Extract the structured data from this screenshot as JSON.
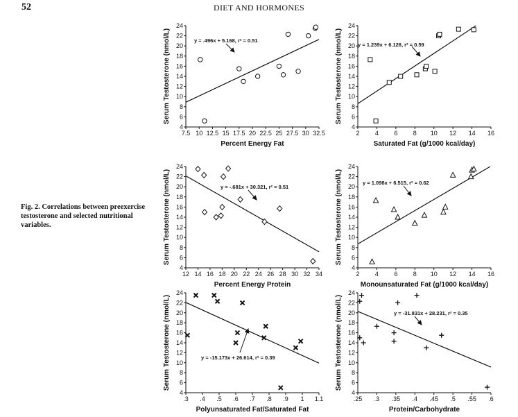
{
  "header": {
    "page_number": "52",
    "running_title": "DIET AND HORMONES"
  },
  "caption": {
    "label": "Fig. 2.",
    "text": "Correlations between preexercise testosterone and selected nutritional variables."
  },
  "chart_data": [
    {
      "type": "scatter",
      "marker": "circle",
      "xlabel": "Percent Energy Fat",
      "ylabel": "Serum Testosterone (nmol/L)",
      "xlim": [
        7.5,
        32.5
      ],
      "ylim": [
        4,
        24
      ],
      "xticks": [
        7.5,
        10,
        12.5,
        15,
        17.5,
        20,
        22.5,
        25,
        27.5,
        30,
        32.5
      ],
      "xtick_labels": [
        "7.5",
        "10",
        "12.5",
        "15",
        "17.5",
        "20",
        "22.5",
        "25",
        "27.5",
        "30",
        "32.5"
      ],
      "yticks": [
        4,
        6,
        8,
        10,
        12,
        14,
        16,
        18,
        20,
        22,
        24
      ],
      "ytick_labels": [
        "4",
        "6",
        "8",
        "10",
        "12",
        "14",
        "16",
        "18",
        "20",
        "22",
        "24"
      ],
      "points": [
        [
          10.2,
          17.3
        ],
        [
          11.0,
          5.2
        ],
        [
          17.5,
          15.5
        ],
        [
          18.3,
          13.0
        ],
        [
          21.0,
          14.0
        ],
        [
          25.0,
          16.0
        ],
        [
          25.8,
          14.3
        ],
        [
          26.7,
          22.3
        ],
        [
          28.6,
          15.0
        ],
        [
          30.5,
          22.0
        ],
        [
          31.8,
          23.5
        ],
        [
          31.9,
          23.7
        ]
      ],
      "fit": {
        "slope": 0.496,
        "intercept": 5.168
      },
      "equation": "y = .496x + 5.168, r² = 0.51"
    },
    {
      "type": "scatter",
      "marker": "square",
      "xlabel": "Saturated Fat (g/1000 kcal/day)",
      "ylabel": "Serum Testosterone (nmol/L)",
      "xlim": [
        2,
        16
      ],
      "ylim": [
        4,
        24
      ],
      "xticks": [
        2,
        4,
        6,
        8,
        10,
        12,
        14,
        16
      ],
      "xtick_labels": [
        "2",
        "4",
        "6",
        "8",
        "10",
        "12",
        "14",
        "16"
      ],
      "yticks": [
        4,
        6,
        8,
        10,
        12,
        14,
        16,
        18,
        20,
        22,
        24
      ],
      "ytick_labels": [
        "4",
        "6",
        "8",
        "10",
        "12",
        "14",
        "16",
        "18",
        "20",
        "22",
        "24"
      ],
      "points": [
        [
          3.3,
          17.3
        ],
        [
          3.9,
          5.2
        ],
        [
          5.3,
          12.8
        ],
        [
          6.5,
          14.0
        ],
        [
          8.2,
          14.3
        ],
        [
          9.1,
          15.5
        ],
        [
          9.2,
          16.0
        ],
        [
          10.1,
          15.0
        ],
        [
          10.5,
          22.0
        ],
        [
          10.6,
          22.3
        ],
        [
          12.6,
          23.3
        ],
        [
          14.2,
          23.2
        ]
      ],
      "fit": {
        "slope": 1.239,
        "intercept": 6.126
      },
      "equation": "y = 1.239x + 6.126, r² = 0.59"
    },
    {
      "type": "scatter",
      "marker": "diamond",
      "xlabel": "Percent Energy Protein",
      "ylabel": "Serum Testosterone (nmol/L)",
      "xlim": [
        12,
        34
      ],
      "ylim": [
        4,
        24
      ],
      "xticks": [
        12,
        14,
        16,
        18,
        20,
        22,
        24,
        26,
        28,
        30,
        32,
        34
      ],
      "xtick_labels": [
        "12",
        "14",
        "16",
        "18",
        "20",
        "22",
        "24",
        "26",
        "28",
        "30",
        "32",
        "34"
      ],
      "yticks": [
        4,
        6,
        8,
        10,
        12,
        14,
        16,
        18,
        20,
        22,
        24
      ],
      "ytick_labels": [
        "4",
        "6",
        "8",
        "10",
        "12",
        "14",
        "16",
        "18",
        "20",
        "22",
        "24"
      ],
      "points": [
        [
          14.0,
          23.5
        ],
        [
          15.0,
          22.3
        ],
        [
          15.1,
          15.0
        ],
        [
          17.0,
          14.0
        ],
        [
          17.8,
          14.3
        ],
        [
          18.0,
          16.0
        ],
        [
          18.2,
          22.0
        ],
        [
          19.0,
          23.6
        ],
        [
          21.0,
          17.5
        ],
        [
          25.0,
          13.1
        ],
        [
          27.5,
          15.7
        ],
        [
          33.0,
          5.3
        ]
      ],
      "fit": {
        "slope": -0.681,
        "intercept": 30.321
      },
      "equation": "y = -.681x + 30.321, r² = 0.51"
    },
    {
      "type": "scatter",
      "marker": "triangle",
      "xlabel": "Monounsaturated Fat (g/1000 kcal/day)",
      "ylabel": "Serum Testosterone (nmol/L)",
      "xlim": [
        2,
        16
      ],
      "ylim": [
        4,
        24
      ],
      "xticks": [
        2,
        4,
        6,
        8,
        10,
        12,
        14,
        16
      ],
      "xtick_labels": [
        "2",
        "4",
        "6",
        "8",
        "10",
        "12",
        "14",
        "16"
      ],
      "yticks": [
        4,
        6,
        8,
        10,
        12,
        14,
        16,
        18,
        20,
        22,
        24
      ],
      "ytick_labels": [
        "4",
        "6",
        "8",
        "10",
        "12",
        "14",
        "16",
        "18",
        "20",
        "22",
        "24"
      ],
      "points": [
        [
          3.5,
          5.2
        ],
        [
          3.9,
          17.3
        ],
        [
          5.8,
          15.5
        ],
        [
          6.2,
          14.0
        ],
        [
          8.0,
          12.8
        ],
        [
          9.0,
          14.4
        ],
        [
          11.0,
          15.0
        ],
        [
          11.2,
          16.0
        ],
        [
          12.0,
          22.3
        ],
        [
          13.9,
          22.0
        ],
        [
          14.0,
          23.3
        ],
        [
          14.2,
          23.5
        ]
      ],
      "fit": {
        "slope": 1.098,
        "intercept": 6.515
      },
      "equation": "y = 1.098x + 6.515, r² = 0.62"
    },
    {
      "type": "scatter",
      "marker": "cross",
      "xlabel": "Polyunsaturated Fat/Saturated Fat",
      "ylabel": "Serum Testosterone (nmol/L)",
      "xlim": [
        0.3,
        1.1
      ],
      "ylim": [
        4,
        24
      ],
      "xticks": [
        0.3,
        0.4,
        0.5,
        0.6,
        0.7,
        0.8,
        0.9,
        1.0,
        1.1
      ],
      "xtick_labels": [
        ".3",
        ".4",
        ".5",
        ".6",
        ".7",
        ".8",
        ".9",
        "1",
        "1.1"
      ],
      "yticks": [
        4,
        6,
        8,
        10,
        12,
        14,
        16,
        18,
        20,
        22,
        24
      ],
      "ytick_labels": [
        "4",
        "6",
        "8",
        "10",
        "12",
        "14",
        "16",
        "18",
        "20",
        "22",
        "24"
      ],
      "points": [
        [
          0.31,
          15.5
        ],
        [
          0.36,
          23.5
        ],
        [
          0.47,
          23.5
        ],
        [
          0.49,
          22.3
        ],
        [
          0.6,
          14.0
        ],
        [
          0.61,
          16.0
        ],
        [
          0.64,
          22.0
        ],
        [
          0.77,
          15.0
        ],
        [
          0.78,
          17.3
        ],
        [
          0.87,
          5.0
        ],
        [
          0.96,
          13.0
        ],
        [
          0.99,
          14.3
        ]
      ],
      "fit": {
        "slope": -15.173,
        "intercept": 26.614
      },
      "equation": "y = -15.173x + 26.614, r² = 0.39"
    },
    {
      "type": "scatter",
      "marker": "plus",
      "xlabel": "Protein/Carbohydrate",
      "ylabel": "Serum Testosterone (nmol/L)",
      "xlim": [
        0.25,
        0.6
      ],
      "ylim": [
        4,
        24
      ],
      "xticks": [
        0.25,
        0.3,
        0.35,
        0.4,
        0.45,
        0.5,
        0.55,
        0.6
      ],
      "xtick_labels": [
        ".25",
        ".3",
        ".35",
        ".4",
        ".45",
        ".5",
        ".55",
        ".6"
      ],
      "yticks": [
        4,
        6,
        8,
        10,
        12,
        14,
        16,
        18,
        20,
        22,
        24
      ],
      "ytick_labels": [
        "4",
        "6",
        "8",
        "10",
        "12",
        "14",
        "16",
        "18",
        "20",
        "22",
        "24"
      ],
      "points": [
        [
          0.255,
          22.3
        ],
        [
          0.26,
          23.5
        ],
        [
          0.255,
          15.0
        ],
        [
          0.265,
          14.0
        ],
        [
          0.3,
          17.3
        ],
        [
          0.345,
          16.0
        ],
        [
          0.345,
          14.3
        ],
        [
          0.355,
          22.0
        ],
        [
          0.405,
          23.5
        ],
        [
          0.43,
          13.0
        ],
        [
          0.47,
          15.5
        ],
        [
          0.59,
          5.1
        ]
      ],
      "fit": {
        "slope": -31.831,
        "intercept": 28.231
      },
      "equation": "y = -31.831x + 28.231, r² = 0.35"
    }
  ]
}
